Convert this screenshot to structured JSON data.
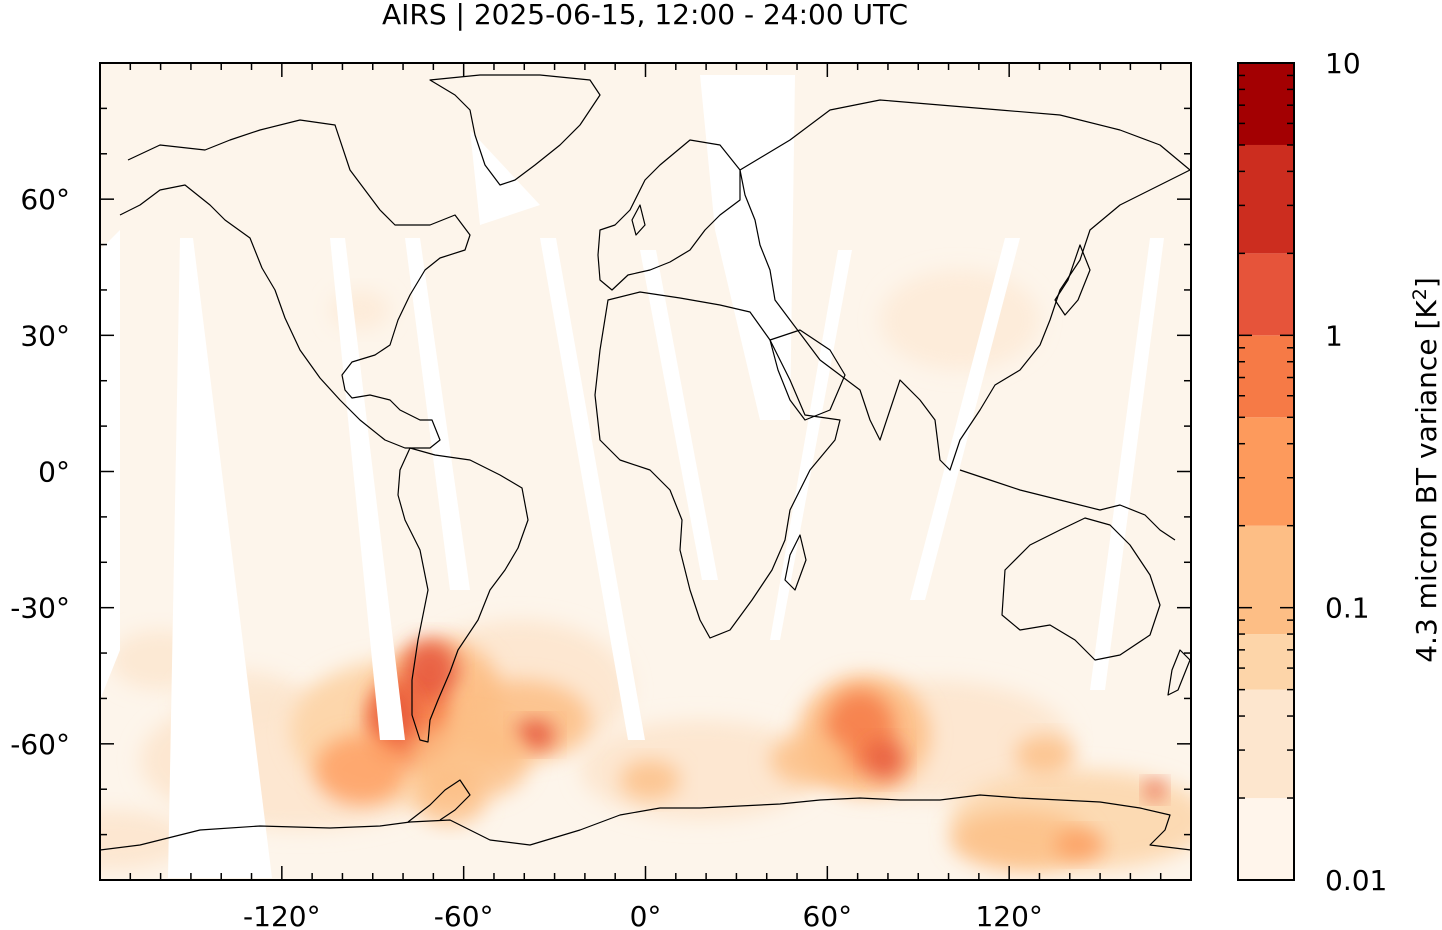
{
  "title": "AIRS | 2025-06-15, 12:00 - 24:00 UTC",
  "map": {
    "projection": "plate-carree",
    "lon_range": [
      -180,
      180
    ],
    "lat_range": [
      -90,
      90
    ],
    "background_color": "#fdf5eb",
    "gap_color": "#ffffff",
    "coastline_color": "#000000",
    "x_ticks": [
      {
        "value": -120,
        "label": "-120°"
      },
      {
        "value": -60,
        "label": "-60°"
      },
      {
        "value": 0,
        "label": "0°"
      },
      {
        "value": 60,
        "label": "60°"
      },
      {
        "value": 120,
        "label": "120°"
      }
    ],
    "y_ticks": [
      {
        "value": 60,
        "label": "60°"
      },
      {
        "value": 30,
        "label": "30°"
      },
      {
        "value": 0,
        "label": "0°"
      },
      {
        "value": -30,
        "label": "-30°"
      },
      {
        "value": -60,
        "label": "-60°"
      }
    ]
  },
  "colorbar": {
    "label_prefix": "4.3 micron BT variance [K",
    "label_sup": "2",
    "label_suffix": "]",
    "scale": "log",
    "range": [
      0.01,
      10
    ],
    "tick_labels": [
      {
        "value": 10,
        "label": "10"
      },
      {
        "value": 1,
        "label": "1"
      },
      {
        "value": 0.1,
        "label": "0.1"
      },
      {
        "value": 0.01,
        "label": "0.01"
      }
    ],
    "bins": [
      0.01,
      0.02,
      0.05,
      0.08,
      0.2,
      0.5,
      1,
      2,
      5,
      10
    ],
    "colors": [
      "#fff5eb",
      "#fde6ce",
      "#fdd5a9",
      "#fdbe85",
      "#fd9a5c",
      "#f67a46",
      "#e6543a",
      "#cc2d1f",
      "#a30002"
    ]
  },
  "features": {
    "high_variance_regions": [
      {
        "name": "Southern Andes / Patagonia",
        "level": 2.0
      },
      {
        "name": "South Atlantic",
        "level": 1.0
      },
      {
        "name": "Southern Indian Ocean near Kerguelen",
        "level": 1.2
      },
      {
        "name": "Southern Ocean south of Australia",
        "level": 0.4
      }
    ],
    "icons": [
      "coastline",
      "orbit-gap"
    ]
  }
}
